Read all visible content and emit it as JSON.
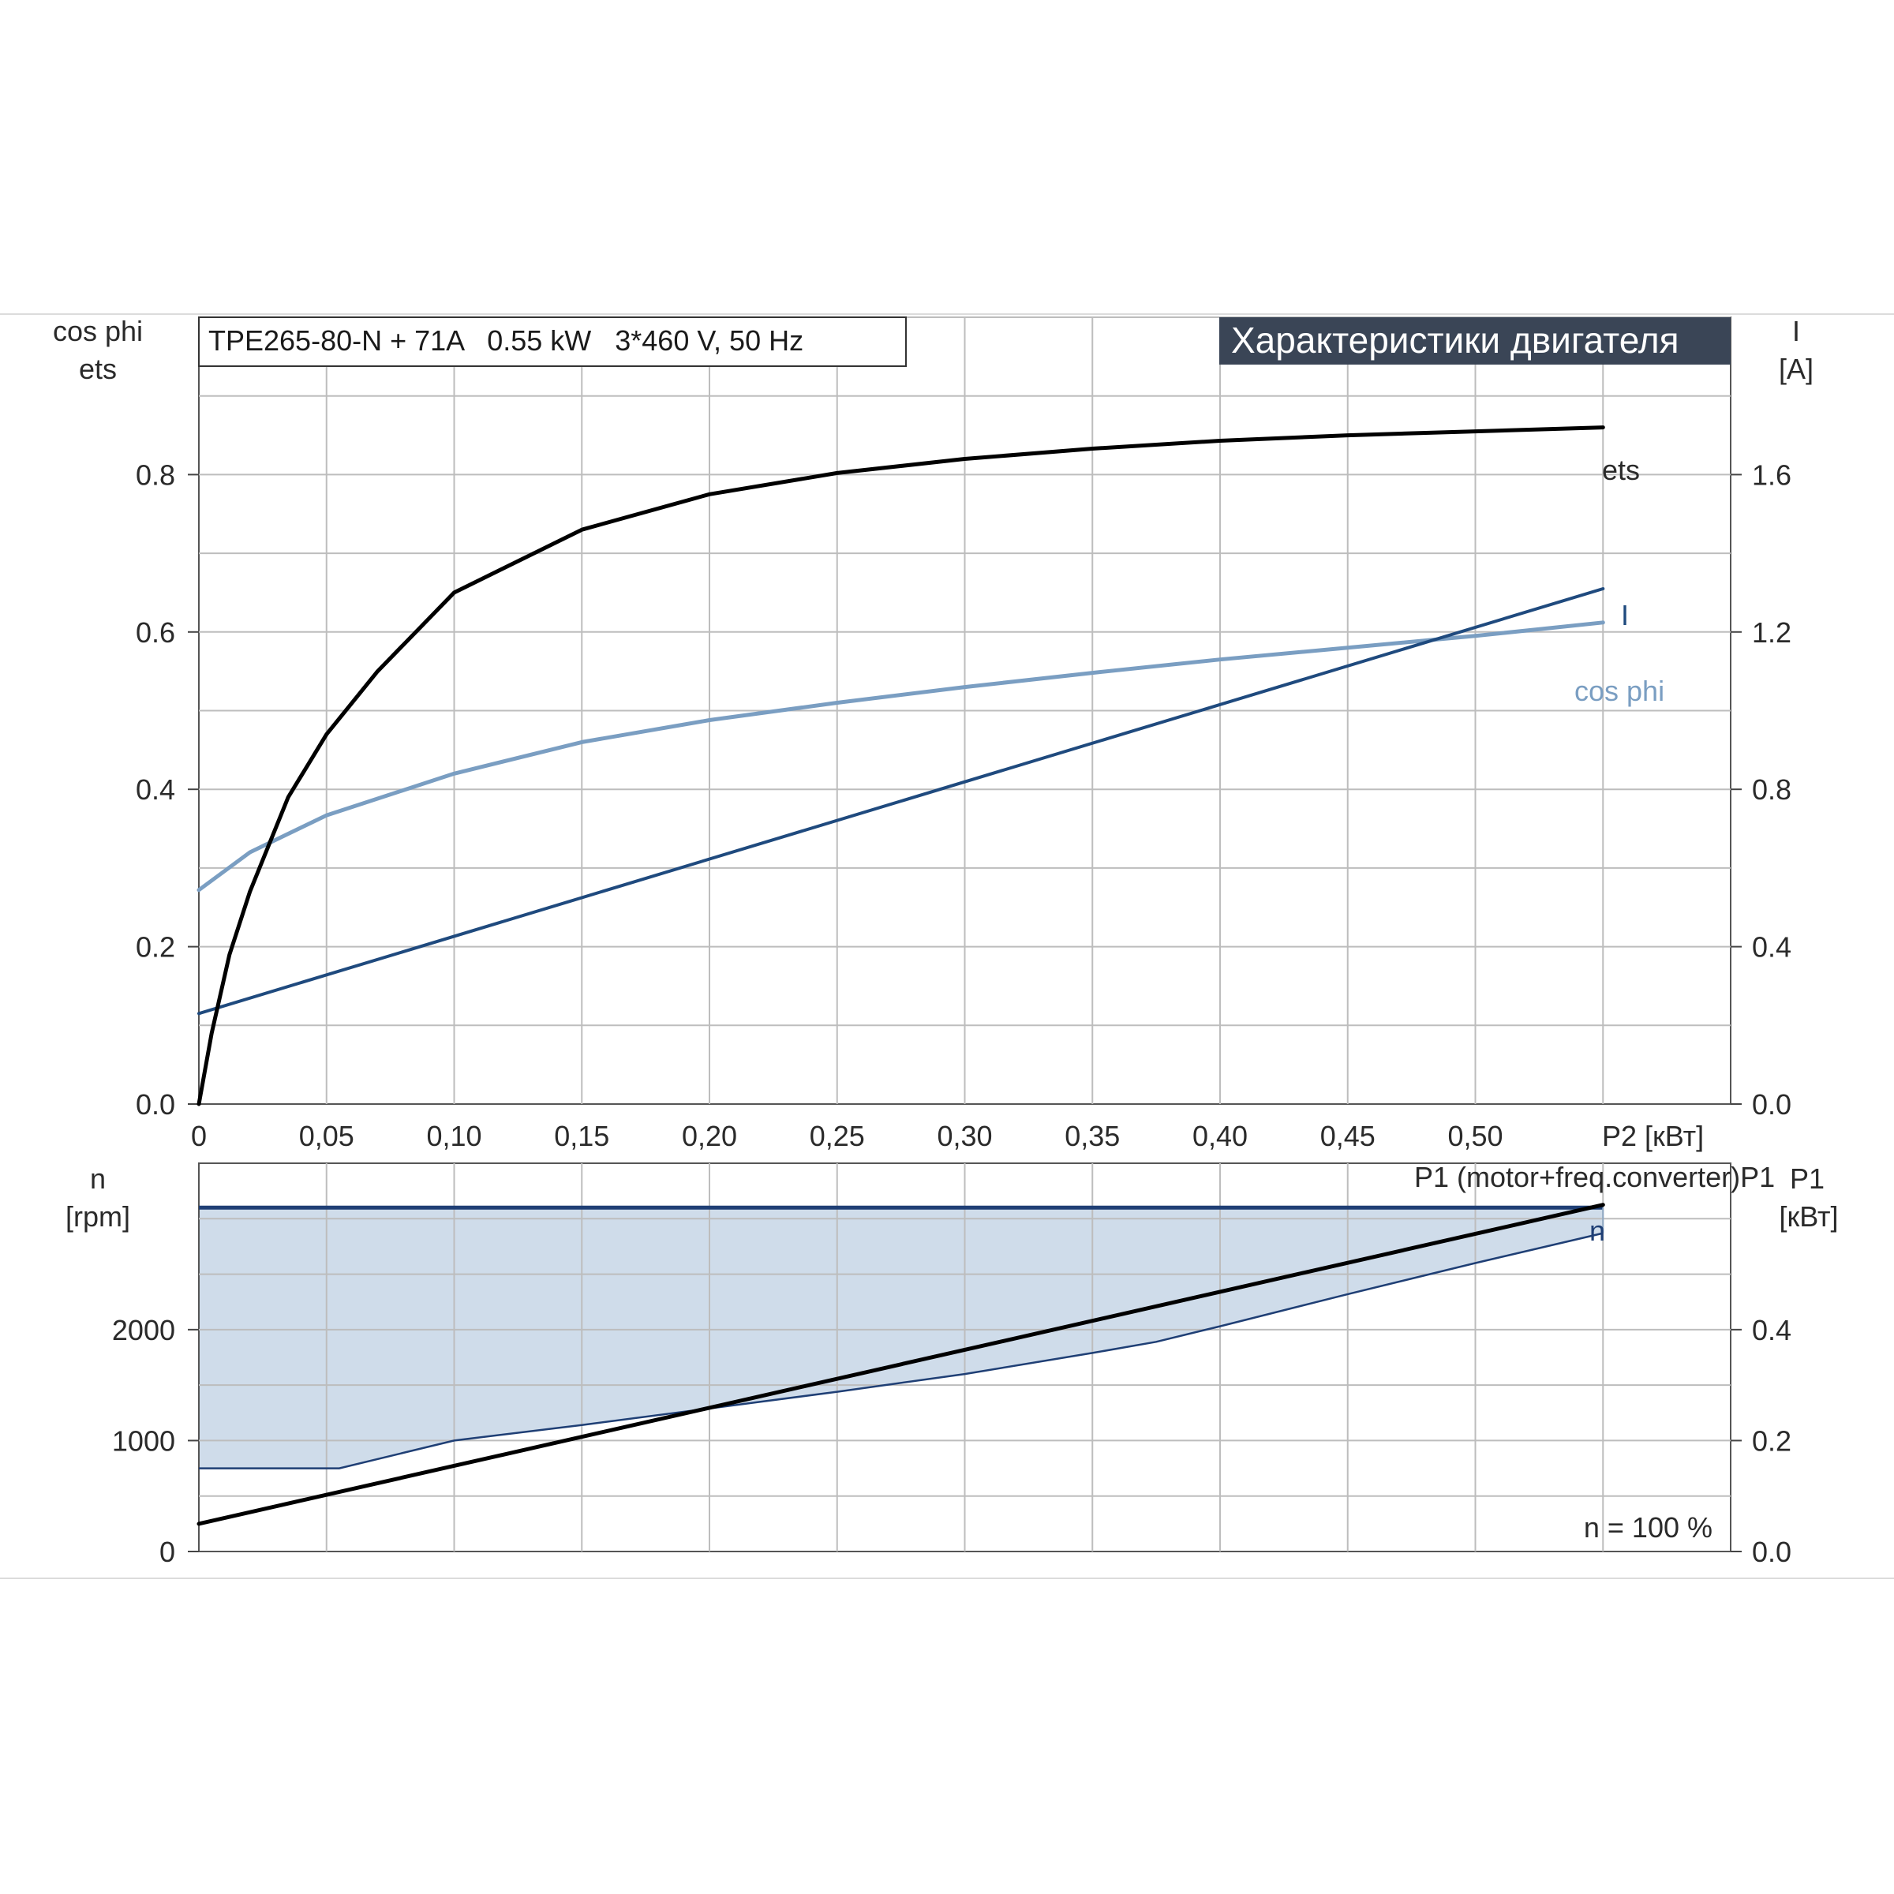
{
  "header": {
    "model": "TPE265-80-N + 71A   0.55 kW   3*460 V, 50 Hz",
    "title": "Характеристики двигателя",
    "footnote": "n = 100 %"
  },
  "colors": {
    "ets": "#000000",
    "I": "#1f4a7e",
    "cos_phi": "#7a9ec2",
    "n_area": "#cfdcea",
    "n_line": "#1f3f75",
    "P1": "#000000",
    "title_bg": "#3a4556",
    "grid": "#bdbdbd"
  },
  "chart_data": [
    {
      "id": "motor",
      "type": "line",
      "x_label": "P2 [кВт]",
      "x_ticks": [
        "0",
        "0,05",
        "0,10",
        "0,15",
        "0,20",
        "0,25",
        "0,30",
        "0,35",
        "0,40",
        "0,45",
        "0,50"
      ],
      "xlim": [
        0,
        0.6
      ],
      "y_left_label": [
        "cos phi",
        "ets"
      ],
      "y_left_ticks": [
        "0.0",
        "0.2",
        "0.4",
        "0.6",
        "0.8"
      ],
      "ylim_left": [
        0,
        1.0
      ],
      "y_right_label": [
        "I",
        "[A]"
      ],
      "y_right_ticks": [
        "0.0",
        "0.4",
        "0.8",
        "1.2",
        "1.6"
      ],
      "ylim_right": [
        0,
        2.0
      ],
      "grid": true,
      "series": [
        {
          "name": "ets",
          "axis": "left",
          "x": [
            0,
            0.005,
            0.012,
            0.02,
            0.035,
            0.05,
            0.07,
            0.1,
            0.15,
            0.2,
            0.25,
            0.3,
            0.35,
            0.4,
            0.45,
            0.5,
            0.55
          ],
          "y": [
            0.0,
            0.09,
            0.19,
            0.27,
            0.39,
            0.47,
            0.55,
            0.65,
            0.73,
            0.775,
            0.802,
            0.82,
            0.833,
            0.843,
            0.85,
            0.855,
            0.86
          ]
        },
        {
          "name": "I",
          "axis": "right",
          "x": [
            0,
            0.55
          ],
          "y": [
            0.23,
            1.31
          ]
        },
        {
          "name": "cos phi",
          "axis": "left",
          "x": [
            0,
            0.02,
            0.05,
            0.1,
            0.15,
            0.2,
            0.25,
            0.3,
            0.35,
            0.4,
            0.45,
            0.5,
            0.55
          ],
          "y": [
            0.272,
            0.32,
            0.367,
            0.42,
            0.46,
            0.488,
            0.51,
            0.53,
            0.548,
            0.565,
            0.58,
            0.595,
            0.612
          ]
        }
      ]
    },
    {
      "id": "speed_power",
      "type": "area",
      "x_label": "",
      "xlim": [
        0,
        0.6
      ],
      "y_left_label": [
        "n",
        "[rpm]"
      ],
      "y_left_ticks": [
        "0",
        "1000",
        "2000"
      ],
      "ylim_left": [
        0,
        3500
      ],
      "y_right_label": [
        "P1",
        "[кВт]"
      ],
      "y_right_ticks": [
        "0.0",
        "0.2",
        "0.4"
      ],
      "ylim_right": [
        0,
        0.7
      ],
      "grid": true,
      "series": [
        {
          "name": "n",
          "axis": "left",
          "x": [
            0,
            0.055,
            0.1,
            0.15,
            0.2,
            0.25,
            0.3,
            0.35,
            0.375,
            0.4,
            0.45,
            0.5,
            0.55
          ],
          "y_min": [
            750,
            750,
            1000,
            1140,
            1290,
            1440,
            1600,
            1790,
            1890,
            2030,
            2320,
            2600,
            2870
          ],
          "y_max": [
            3100,
            3100,
            3100,
            3100,
            3100,
            3100,
            3100,
            3100,
            3100,
            3100,
            3100,
            3100,
            3100
          ]
        },
        {
          "name": "P1 (motor+freq.converter)P1",
          "axis": "right",
          "x": [
            0,
            0.55
          ],
          "y": [
            0.05,
            0.625
          ]
        }
      ]
    }
  ]
}
